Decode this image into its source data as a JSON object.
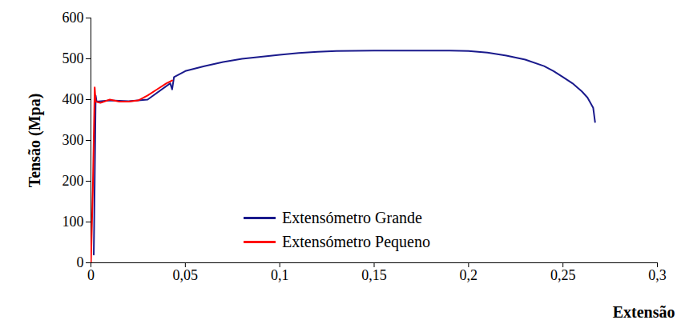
{
  "chart_data": {
    "type": "line",
    "x_label": "Extensão",
    "y_label": "Tensão (Mpa)",
    "xlim": [
      0,
      0.3
    ],
    "ylim": [
      0,
      600
    ],
    "xticks": [
      0,
      {
        "value": 0.05,
        "label": "0,05"
      },
      {
        "value": 0.1,
        "label": "0,1"
      },
      {
        "value": 0.15,
        "label": "0,15"
      },
      {
        "value": 0.2,
        "label": "0,2"
      },
      {
        "value": 0.25,
        "label": "0,25"
      },
      {
        "value": 0.3,
        "label": "0,3"
      }
    ],
    "yticks": [
      0,
      100,
      200,
      300,
      400,
      500,
      600
    ],
    "grid": false,
    "legend": "bottom-right",
    "series": [
      {
        "name": "Extensómetro Grande",
        "color": "#1a1a8c",
        "x": [
          0.0015,
          0.002,
          0.0025,
          0.003,
          0.01,
          0.02,
          0.03,
          0.042,
          0.043,
          0.044,
          0.05,
          0.06,
          0.07,
          0.08,
          0.09,
          0.1,
          0.11,
          0.12,
          0.13,
          0.15,
          0.17,
          0.19,
          0.2,
          0.21,
          0.22,
          0.23,
          0.24,
          0.245,
          0.25,
          0.255,
          0.26,
          0.263,
          0.266,
          0.267
        ],
        "values": [
          20,
          200,
          410,
          395,
          398,
          396,
          400,
          440,
          425,
          455,
          470,
          482,
          492,
          500,
          505,
          510,
          514,
          517,
          519,
          520,
          520,
          520,
          519,
          515,
          508,
          498,
          482,
          470,
          455,
          440,
          420,
          405,
          380,
          345
        ]
      },
      {
        "name": "Extensómetro Pequeno",
        "color": "#ff0000",
        "x": [
          0,
          0.001,
          0.002,
          0.0025,
          0.005,
          0.01,
          0.015,
          0.02,
          0.025,
          0.03,
          0.035,
          0.04,
          0.043
        ],
        "values": [
          0,
          180,
          430,
          395,
          392,
          400,
          395,
          395,
          398,
          410,
          425,
          440,
          447
        ]
      }
    ]
  }
}
